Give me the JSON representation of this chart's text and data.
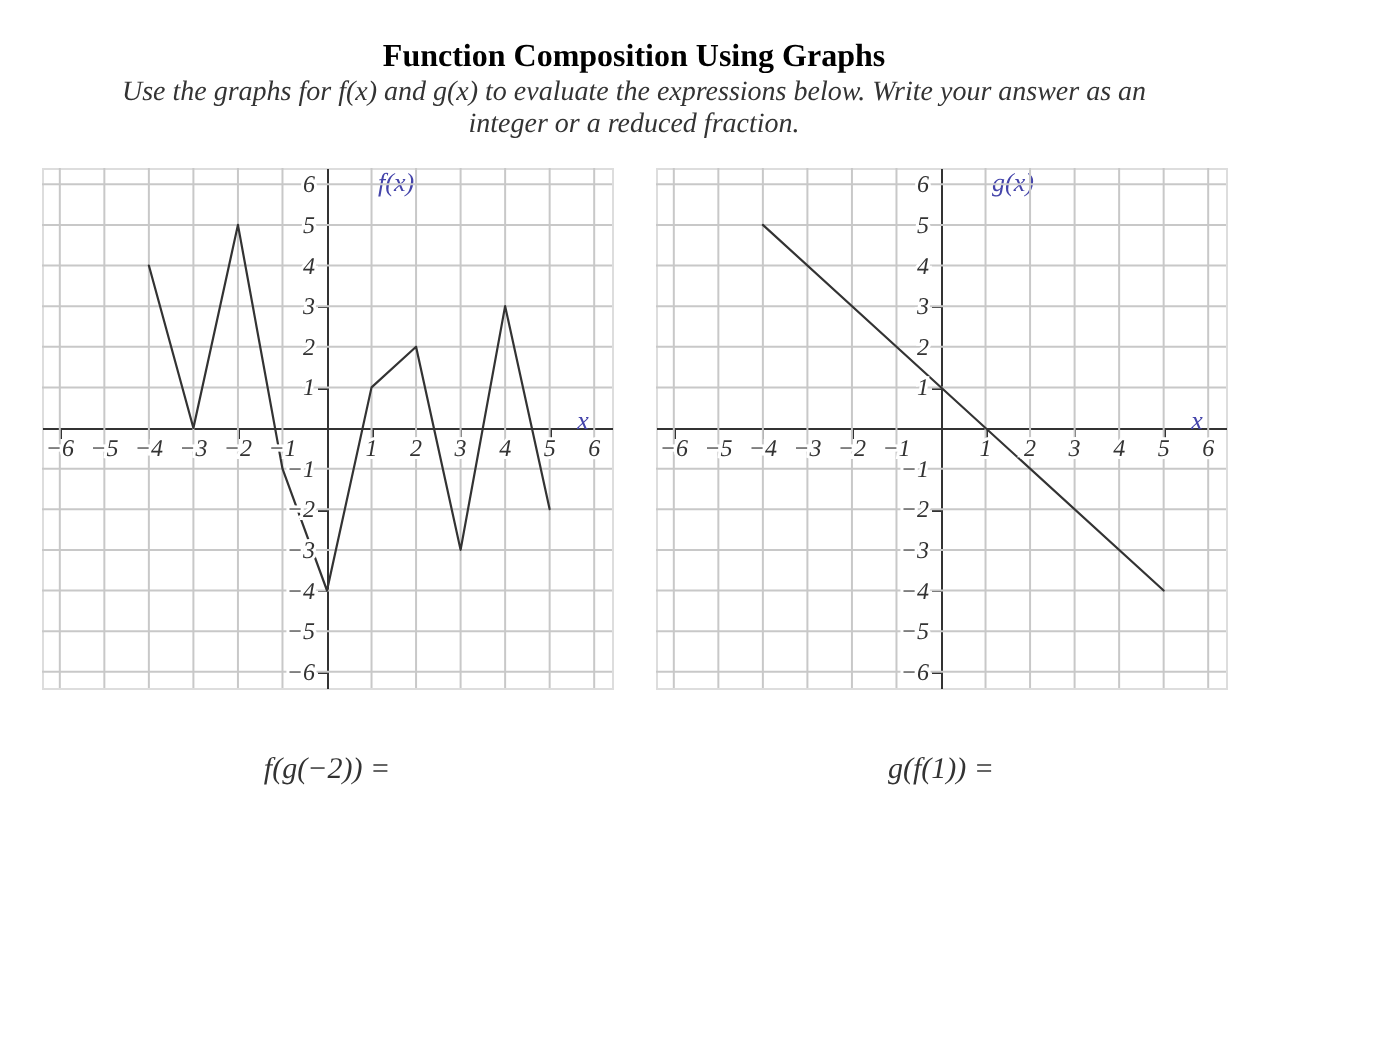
{
  "chart_data": [
    {
      "type": "line",
      "title": "Function Composition Using Graphs",
      "subtitle": "Use the graphs for f(x) and g(x) to evaluate the expressions below. Write your answer as an integer or a reduced fraction.",
      "xlabel": "x",
      "ylabel": "f(x)",
      "x": [
        -4,
        -3,
        -2,
        -1,
        0,
        1,
        2,
        3,
        4,
        5
      ],
      "series": [
        {
          "color": "#333333",
          "values": [
            4,
            0,
            5,
            -1,
            -4,
            1,
            2,
            -3,
            3,
            -2
          ]
        }
      ],
      "xlim": [
        -6.4,
        6.4
      ],
      "ylim": [
        -6.4,
        6.4
      ],
      "xticks": [
        -6,
        -5,
        -4,
        -3,
        -2,
        -1,
        1,
        2,
        3,
        4,
        5,
        6
      ],
      "yticks": [
        -6,
        -5,
        -4,
        -3,
        -2,
        -1,
        1,
        2,
        3,
        4,
        5,
        6
      ],
      "grid": true,
      "marker": "none",
      "line_style": "solid",
      "annotations": [
        "f(g(−2)) ="
      ]
    },
    {
      "type": "line",
      "xlabel": "x",
      "ylabel": "g(x)",
      "x": [
        -4,
        5
      ],
      "series": [
        {
          "color": "#333333",
          "values": [
            5,
            -4
          ]
        }
      ],
      "xlim": [
        -6.4,
        6.4
      ],
      "ylim": [
        -6.4,
        6.4
      ],
      "xticks": [
        -6,
        -5,
        -4,
        -3,
        -2,
        -1,
        1,
        2,
        3,
        4,
        5,
        6
      ],
      "yticks": [
        -6,
        -5,
        -4,
        -3,
        -2,
        -1,
        1,
        2,
        3,
        4,
        5,
        6
      ],
      "grid": true,
      "marker": "none",
      "line_style": "solid",
      "annotations": [
        "g(f(1)) ="
      ]
    }
  ]
}
